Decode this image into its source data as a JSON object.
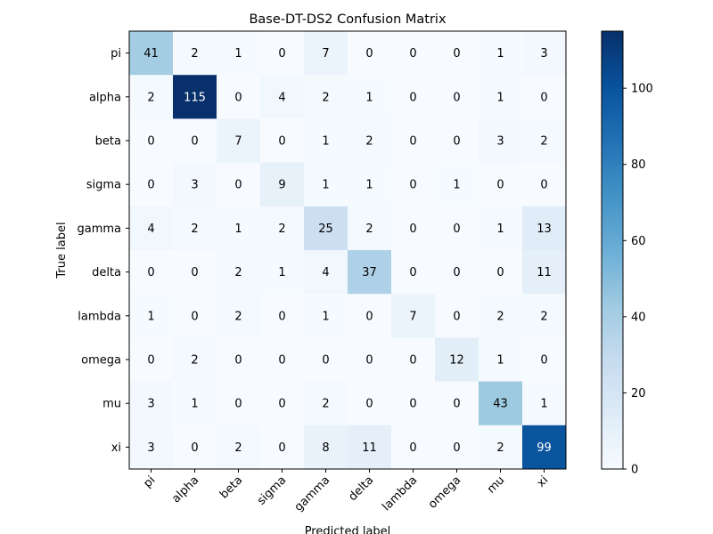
{
  "chart_data": {
    "type": "heatmap",
    "title": "Base-DT-DS2 Confusion Matrix",
    "xlabel": "Predicted label",
    "ylabel": "True label",
    "x_categories": [
      "pi",
      "alpha",
      "beta",
      "sigma",
      "gamma",
      "delta",
      "lambda",
      "omega",
      "mu",
      "xi"
    ],
    "y_categories": [
      "pi",
      "alpha",
      "beta",
      "sigma",
      "gamma",
      "delta",
      "lambda",
      "omega",
      "mu",
      "xi"
    ],
    "values": [
      [
        41,
        2,
        1,
        0,
        7,
        0,
        0,
        0,
        1,
        3
      ],
      [
        2,
        115,
        0,
        4,
        2,
        1,
        0,
        0,
        1,
        0
      ],
      [
        0,
        0,
        7,
        0,
        1,
        2,
        0,
        0,
        3,
        2
      ],
      [
        0,
        3,
        0,
        9,
        1,
        1,
        0,
        1,
        0,
        0
      ],
      [
        4,
        2,
        1,
        2,
        25,
        2,
        0,
        0,
        1,
        13
      ],
      [
        0,
        0,
        2,
        1,
        4,
        37,
        0,
        0,
        0,
        11
      ],
      [
        1,
        0,
        2,
        0,
        1,
        0,
        7,
        0,
        2,
        2
      ],
      [
        0,
        2,
        0,
        0,
        0,
        0,
        0,
        12,
        1,
        0
      ],
      [
        3,
        1,
        0,
        0,
        2,
        0,
        0,
        0,
        43,
        1
      ],
      [
        3,
        0,
        2,
        0,
        8,
        11,
        0,
        0,
        2,
        99
      ]
    ],
    "colormap": "Blues",
    "value_range": [
      0,
      115
    ],
    "colorbar_ticks": [
      0,
      20,
      40,
      60,
      80,
      100
    ],
    "text_color_light": "#ffffff",
    "text_color_dark": "#000000"
  }
}
